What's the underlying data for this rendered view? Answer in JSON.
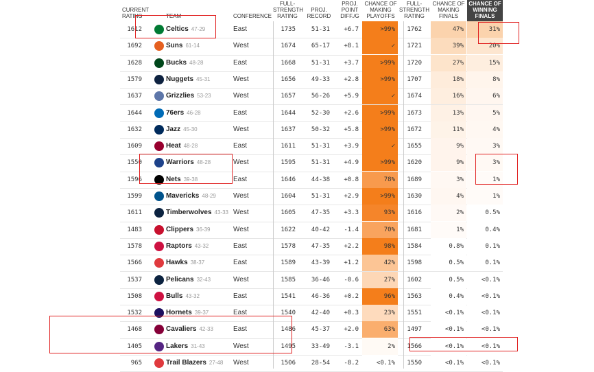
{
  "headers": {
    "current_rating": "CURRENT RATING",
    "team": "TEAM",
    "conference": "CONFERENCE",
    "full_strength": "FULL-STRENGTH RATING",
    "proj_record": "PROJ. RECORD",
    "proj_point_diff": "PROJ. POINT DIFF./G",
    "make_playoffs": "CHANCE OF MAKING PLAYOFFS",
    "full_strength2": "FULL-STRENGTH RATING",
    "make_finals": "CHANCE OF MAKING FINALS",
    "win_finals": "CHANCE OF WINNING FINALS"
  },
  "rows": [
    {
      "rating": "1612",
      "team": "Celtics",
      "record": "47-29",
      "conf": "East",
      "fs": "1735",
      "proj": "51-31",
      "diff": "+6.7",
      "playoffs": ">99%",
      "fs2": "1762",
      "finals": "47%",
      "win": "31%",
      "pshade": "#f47e1b",
      "fshade": "#fbd3ad",
      "wshade": "#fbd3ad",
      "logo": "#007a33",
      "logo_icon": "celtics-logo-icon"
    },
    {
      "rating": "1692",
      "team": "Suns",
      "record": "61-14",
      "conf": "West",
      "fs": "1674",
      "proj": "65-17",
      "diff": "+8.1",
      "playoffs": "✓",
      "fs2": "1721",
      "finals": "39%",
      "win": "20%",
      "pshade": "#f47e1b",
      "fshade": "#fcdcbd",
      "wshade": "#fde6d0",
      "logo": "#e56020",
      "logo_icon": "suns-logo-icon"
    },
    {
      "rating": "1628",
      "team": "Bucks",
      "record": "48-28",
      "conf": "East",
      "fs": "1668",
      "proj": "51-31",
      "diff": "+3.7",
      "playoffs": ">99%",
      "fs2": "1720",
      "finals": "27%",
      "win": "15%",
      "pshade": "#f47e1b",
      "fshade": "#fde4cb",
      "wshade": "#feeedf",
      "logo": "#00471b",
      "logo_icon": "bucks-logo-icon"
    },
    {
      "rating": "1579",
      "team": "Nuggets",
      "record": "45-31",
      "conf": "West",
      "fs": "1656",
      "proj": "49-33",
      "diff": "+2.8",
      "playoffs": ">99%",
      "fs2": "1707",
      "finals": "18%",
      "win": "8%",
      "pshade": "#f47e1b",
      "fshade": "#feecdb",
      "wshade": "#fff5ec",
      "logo": "#0e2240",
      "logo_icon": "nuggets-logo-icon"
    },
    {
      "rating": "1637",
      "team": "Grizzlies",
      "record": "53-23",
      "conf": "West",
      "fs": "1657",
      "proj": "56-26",
      "diff": "+5.9",
      "playoffs": "✓",
      "fs2": "1674",
      "finals": "16%",
      "win": "6%",
      "pshade": "#f47e1b",
      "fshade": "#feeedf",
      "wshade": "#fff6ef",
      "logo": "#5d76a9",
      "logo_icon": "grizzlies-logo-icon"
    },
    {
      "rating": "1644",
      "team": "76ers",
      "record": "46-28",
      "conf": "East",
      "fs": "1644",
      "proj": "52-30",
      "diff": "+2.6",
      "playoffs": ">99%",
      "fs2": "1673",
      "finals": "13%",
      "win": "5%",
      "pshade": "#f47e1b",
      "fshade": "#fef1e5",
      "wshade": "#fff7f1",
      "logo": "#006bb6",
      "logo_icon": "76ers-logo-icon"
    },
    {
      "rating": "1632",
      "team": "Jazz",
      "record": "45-30",
      "conf": "West",
      "fs": "1637",
      "proj": "50-32",
      "diff": "+5.8",
      "playoffs": ">99%",
      "fs2": "1672",
      "finals": "11%",
      "win": "4%",
      "pshade": "#f47e1b",
      "fshade": "#fef3e8",
      "wshade": "#fff8f2",
      "logo": "#002b5c",
      "logo_icon": "jazz-logo-icon"
    },
    {
      "rating": "1609",
      "team": "Heat",
      "record": "48-28",
      "conf": "East",
      "fs": "1611",
      "proj": "51-31",
      "diff": "+3.9",
      "playoffs": "✓",
      "fs2": "1655",
      "finals": "9%",
      "win": "3%",
      "pshade": "#f47e1b",
      "fshade": "#fff4ec",
      "wshade": "#fff9f4",
      "logo": "#98002e",
      "logo_icon": "heat-logo-icon"
    },
    {
      "rating": "1550",
      "team": "Warriors",
      "record": "48-28",
      "conf": "West",
      "fs": "1595",
      "proj": "51-31",
      "diff": "+4.9",
      "playoffs": ">99%",
      "fs2": "1620",
      "finals": "9%",
      "win": "3%",
      "pshade": "#f47e1b",
      "fshade": "#fff4ec",
      "wshade": "#fff9f4",
      "logo": "#1d428a",
      "logo_icon": "warriors-logo-icon"
    },
    {
      "rating": "1596",
      "team": "Nets",
      "record": "39-38",
      "conf": "East",
      "fs": "1646",
      "proj": "44-38",
      "diff": "+0.8",
      "playoffs": "78%",
      "fs2": "1689",
      "finals": "3%",
      "win": "1%",
      "pshade": "#f89a4d",
      "fshade": "#fff8f3",
      "wshade": "#fffbf8",
      "logo": "#000000",
      "logo_icon": "nets-logo-icon"
    },
    {
      "rating": "1599",
      "team": "Mavericks",
      "record": "48-29",
      "conf": "West",
      "fs": "1604",
      "proj": "51-31",
      "diff": "+2.9",
      "playoffs": ">99%",
      "fs2": "1630",
      "finals": "4%",
      "win": "1%",
      "pshade": "#f47e1b",
      "fshade": "#fff7f1",
      "wshade": "#fffbf8",
      "logo": "#00538c",
      "logo_icon": "mavericks-logo-icon"
    },
    {
      "rating": "1611",
      "team": "Timberwolves",
      "record": "43-33",
      "conf": "West",
      "fs": "1605",
      "proj": "47-35",
      "diff": "+3.3",
      "playoffs": "93%",
      "fs2": "1616",
      "finals": "2%",
      "win": "0.5%",
      "pshade": "#f5852a",
      "fshade": "#fff9f5",
      "wshade": "#ffffff",
      "logo": "#0c2340",
      "logo_icon": "timberwolves-logo-icon"
    },
    {
      "rating": "1483",
      "team": "Clippers",
      "record": "36-39",
      "conf": "West",
      "fs": "1622",
      "proj": "40-42",
      "diff": "-1.4",
      "playoffs": "70%",
      "fs2": "1681",
      "finals": "1%",
      "win": "0.4%",
      "pshade": "#f9a45e",
      "fshade": "#fffbf8",
      "wshade": "#ffffff",
      "logo": "#c8102e",
      "logo_icon": "clippers-logo-icon"
    },
    {
      "rating": "1578",
      "team": "Raptors",
      "record": "43-32",
      "conf": "East",
      "fs": "1578",
      "proj": "47-35",
      "diff": "+2.2",
      "playoffs": "98%",
      "fs2": "1584",
      "finals": "0.8%",
      "win": "0.1%",
      "pshade": "#f47e1b",
      "fshade": "#ffffff",
      "wshade": "#ffffff",
      "logo": "#ce1141",
      "logo_icon": "raptors-logo-icon"
    },
    {
      "rating": "1566",
      "team": "Hawks",
      "record": "38-37",
      "conf": "East",
      "fs": "1589",
      "proj": "43-39",
      "diff": "+1.2",
      "playoffs": "42%",
      "fs2": "1598",
      "finals": "0.5%",
      "win": "0.1%",
      "pshade": "#fcc595",
      "fshade": "#ffffff",
      "wshade": "#ffffff",
      "logo": "#e03a3e",
      "logo_icon": "hawks-logo-icon"
    },
    {
      "rating": "1537",
      "team": "Pelicans",
      "record": "32-43",
      "conf": "West",
      "fs": "1585",
      "proj": "36-46",
      "diff": "-0.6",
      "playoffs": "27%",
      "fs2": "1602",
      "finals": "0.5%",
      "win": "<0.1%",
      "pshade": "#fdd7b6",
      "fshade": "#ffffff",
      "wshade": "#ffffff",
      "logo": "#0c2340",
      "logo_icon": "pelicans-logo-icon"
    },
    {
      "rating": "1508",
      "team": "Bulls",
      "record": "43-32",
      "conf": "East",
      "fs": "1541",
      "proj": "46-36",
      "diff": "+0.2",
      "playoffs": "96%",
      "fs2": "1563",
      "finals": "0.4%",
      "win": "<0.1%",
      "pshade": "#f47e1b",
      "fshade": "#ffffff",
      "wshade": "#ffffff",
      "logo": "#ce1141",
      "logo_icon": "bulls-logo-icon"
    },
    {
      "rating": "1532",
      "team": "Hornets",
      "record": "39-37",
      "conf": "East",
      "fs": "1540",
      "proj": "42-40",
      "diff": "+0.3",
      "playoffs": "23%",
      "fs2": "1551",
      "finals": "<0.1%",
      "win": "<0.1%",
      "pshade": "#fedbbd",
      "fshade": "#ffffff",
      "wshade": "#ffffff",
      "logo": "#1d1160",
      "logo_icon": "hornets-logo-icon"
    },
    {
      "rating": "1468",
      "team": "Cavaliers",
      "record": "42-33",
      "conf": "East",
      "fs": "1486",
      "proj": "45-37",
      "diff": "+2.0",
      "playoffs": "63%",
      "fs2": "1497",
      "finals": "<0.1%",
      "win": "<0.1%",
      "pshade": "#faae6e",
      "fshade": "#ffffff",
      "wshade": "#ffffff",
      "logo": "#860038",
      "logo_icon": "cavaliers-logo-icon"
    },
    {
      "rating": "1405",
      "team": "Lakers",
      "record": "31-43",
      "conf": "West",
      "fs": "1495",
      "proj": "33-49",
      "diff": "-3.1",
      "playoffs": "2%",
      "fs2": "1566",
      "finals": "<0.1%",
      "win": "<0.1%",
      "pshade": "#fffaf5",
      "fshade": "#ffffff",
      "wshade": "#ffffff",
      "logo": "#552583",
      "logo_icon": "lakers-logo-icon"
    },
    {
      "rating": "965",
      "team": "Trail Blazers",
      "record": "27-48",
      "conf": "West",
      "fs": "1506",
      "proj": "28-54",
      "diff": "-8.2",
      "playoffs": "<0.1%",
      "fs2": "1550",
      "finals": "<0.1%",
      "win": "<0.1%",
      "pshade": "#ffffff",
      "fshade": "#ffffff",
      "wshade": "#ffffff",
      "logo": "#e03a3e",
      "logo_icon": "trail-blazers-logo-icon"
    }
  ],
  "colors": {
    "accent": "#f47e1b",
    "header_dark": "#444444",
    "annotation": "#e02020"
  }
}
